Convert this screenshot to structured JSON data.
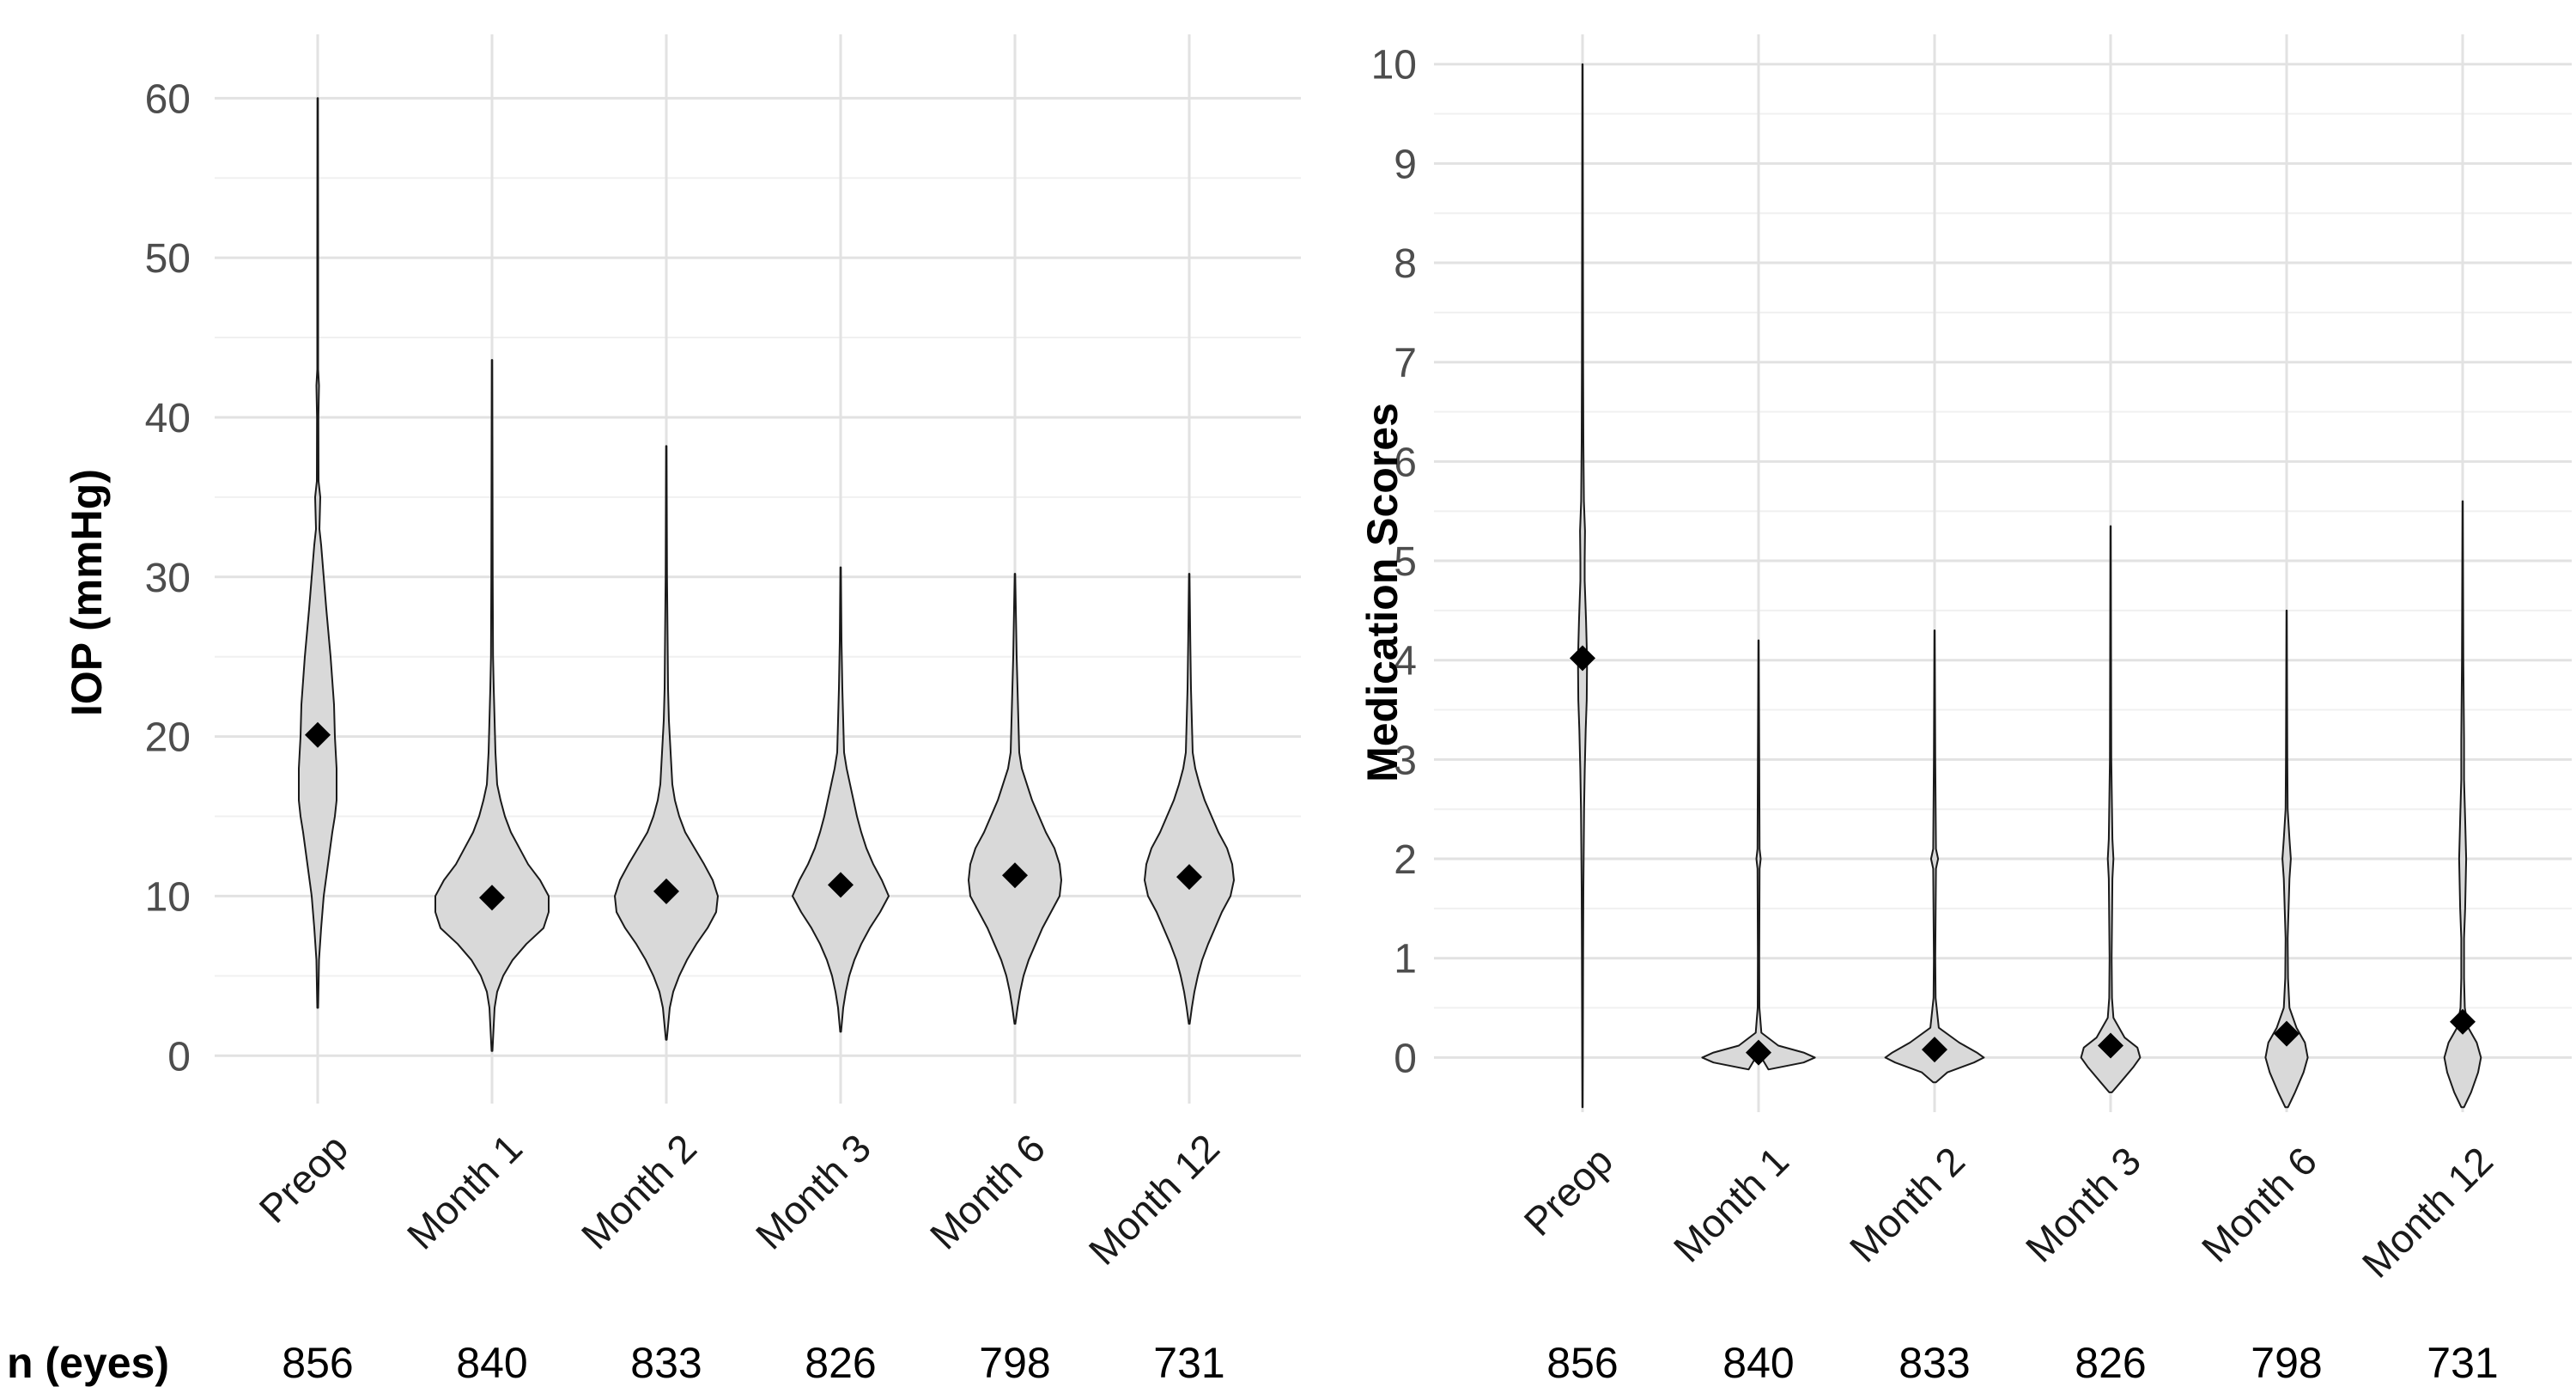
{
  "n_row": {
    "label": "n (eyes)",
    "left_values": [
      "856",
      "840",
      "833",
      "826",
      "798",
      "731"
    ],
    "right_values": [
      "856",
      "840",
      "833",
      "826",
      "798",
      "731"
    ]
  },
  "chart_data": [
    {
      "type": "violin",
      "title": "",
      "xlabel": "",
      "ylabel": "IOP (mmHg)",
      "categories": [
        "Preop",
        "Month 1",
        "Month 2",
        "Month 3",
        "Month 6",
        "Month 12"
      ],
      "ylim": [
        -3,
        64
      ],
      "yticks": [
        0,
        10,
        20,
        30,
        40,
        50,
        60
      ],
      "grid": true,
      "legend": "none",
      "means": [
        20.1,
        9.9,
        10.3,
        10.7,
        11.3,
        11.2
      ],
      "ranges": [
        [
          3,
          60
        ],
        [
          0.3,
          43.6
        ],
        [
          1,
          38.2
        ],
        [
          1.5,
          30.6
        ],
        [
          2,
          30.2
        ],
        [
          2,
          30.2
        ]
      ],
      "profiles": [
        [
          [
            3,
            0.5
          ],
          [
            6,
            1.5
          ],
          [
            8,
            4
          ],
          [
            10,
            7
          ],
          [
            12,
            12
          ],
          [
            14,
            17
          ],
          [
            15,
            20
          ],
          [
            16,
            22
          ],
          [
            18,
            22
          ],
          [
            20,
            20
          ],
          [
            22,
            19
          ],
          [
            25,
            15
          ],
          [
            28,
            10
          ],
          [
            30,
            7
          ],
          [
            32,
            4
          ],
          [
            33,
            2
          ],
          [
            35,
            3
          ],
          [
            36,
            1
          ],
          [
            40,
            0.8
          ],
          [
            42,
            1.5
          ],
          [
            43,
            0.5
          ],
          [
            50,
            0.5
          ],
          [
            60,
            0.3
          ]
        ],
        [
          [
            0.3,
            0.5
          ],
          [
            3,
            3
          ],
          [
            4,
            6
          ],
          [
            5,
            13
          ],
          [
            6,
            24
          ],
          [
            7,
            40
          ],
          [
            8,
            60
          ],
          [
            9,
            66
          ],
          [
            10,
            66
          ],
          [
            11,
            56
          ],
          [
            12,
            42
          ],
          [
            13,
            32
          ],
          [
            14,
            22
          ],
          [
            15,
            15
          ],
          [
            16,
            10
          ],
          [
            17,
            6
          ],
          [
            19,
            4
          ],
          [
            21,
            3
          ],
          [
            23,
            2
          ],
          [
            25,
            1.2
          ],
          [
            30,
            0.8
          ],
          [
            43.6,
            0.3
          ]
        ],
        [
          [
            1,
            0.5
          ],
          [
            3,
            4
          ],
          [
            4,
            8
          ],
          [
            5,
            15
          ],
          [
            6,
            24
          ],
          [
            7,
            35
          ],
          [
            8,
            48
          ],
          [
            9,
            58
          ],
          [
            10,
            60
          ],
          [
            11,
            54
          ],
          [
            12,
            44
          ],
          [
            13,
            33
          ],
          [
            14,
            22
          ],
          [
            15,
            15
          ],
          [
            16,
            10
          ],
          [
            17,
            7
          ],
          [
            19,
            5
          ],
          [
            21,
            3
          ],
          [
            23,
            2
          ],
          [
            26,
            1.5
          ],
          [
            30,
            0.8
          ],
          [
            38.2,
            0.3
          ]
        ],
        [
          [
            1.5,
            0.5
          ],
          [
            3,
            3
          ],
          [
            4,
            6
          ],
          [
            5,
            10
          ],
          [
            6,
            16
          ],
          [
            7,
            24
          ],
          [
            8,
            34
          ],
          [
            9,
            46
          ],
          [
            10,
            56
          ],
          [
            11,
            48
          ],
          [
            12,
            38
          ],
          [
            13,
            30
          ],
          [
            14,
            24
          ],
          [
            15,
            19
          ],
          [
            16,
            15
          ],
          [
            17,
            11
          ],
          [
            18,
            7
          ],
          [
            19,
            4
          ],
          [
            21,
            3
          ],
          [
            23,
            2
          ],
          [
            26,
            1
          ],
          [
            30.6,
            0.3
          ]
        ],
        [
          [
            2,
            0.5
          ],
          [
            3,
            3
          ],
          [
            4,
            6
          ],
          [
            5,
            10
          ],
          [
            6,
            16
          ],
          [
            7,
            24
          ],
          [
            8,
            32
          ],
          [
            9,
            42
          ],
          [
            10,
            52
          ],
          [
            11,
            54
          ],
          [
            12,
            52
          ],
          [
            13,
            46
          ],
          [
            14,
            36
          ],
          [
            15,
            28
          ],
          [
            16,
            20
          ],
          [
            17,
            14
          ],
          [
            18,
            8
          ],
          [
            19,
            5
          ],
          [
            21,
            4
          ],
          [
            23,
            3
          ],
          [
            25,
            2
          ],
          [
            30.2,
            0.3
          ]
        ],
        [
          [
            2,
            0.5
          ],
          [
            3,
            3
          ],
          [
            4,
            6
          ],
          [
            5,
            10
          ],
          [
            6,
            15
          ],
          [
            7,
            22
          ],
          [
            8,
            30
          ],
          [
            9,
            38
          ],
          [
            10,
            48
          ],
          [
            11,
            52
          ],
          [
            12,
            50
          ],
          [
            13,
            44
          ],
          [
            14,
            34
          ],
          [
            15,
            26
          ],
          [
            16,
            18
          ],
          [
            17,
            12
          ],
          [
            18,
            7
          ],
          [
            19,
            4
          ],
          [
            21,
            3
          ],
          [
            23,
            2
          ],
          [
            26,
            1.2
          ],
          [
            30.2,
            0.3
          ]
        ]
      ]
    },
    {
      "type": "violin",
      "title": "",
      "xlabel": "",
      "ylabel": "Medication Scores",
      "categories": [
        "Preop",
        "Month 1",
        "Month 2",
        "Month 3",
        "Month 6",
        "Month 12"
      ],
      "ylim": [
        -0.55,
        10.3
      ],
      "yticks": [
        0,
        1,
        2,
        3,
        4,
        5,
        6,
        7,
        8,
        9,
        10
      ],
      "grid": true,
      "legend": "none",
      "means": [
        4.02,
        0.05,
        0.08,
        0.12,
        0.24,
        0.36
      ],
      "ranges": [
        [
          -0.5,
          10
        ],
        [
          0,
          4.2
        ],
        [
          -0.25,
          4.3
        ],
        [
          -0.35,
          5.35
        ],
        [
          -0.5,
          4.5
        ],
        [
          -0.5,
          5.6
        ]
      ],
      "profiles": [
        [
          [
            -0.5,
            0.3
          ],
          [
            0,
            0.5
          ],
          [
            1,
            0.8
          ],
          [
            1.7,
            1.2
          ],
          [
            2,
            1.6
          ],
          [
            2.5,
            2.2
          ],
          [
            2.9,
            3.2
          ],
          [
            3.3,
            4.5
          ],
          [
            3.6,
            6
          ],
          [
            4,
            6.5
          ],
          [
            4.4,
            5
          ],
          [
            4.8,
            3
          ],
          [
            5,
            3
          ],
          [
            5.3,
            3.5
          ],
          [
            5.6,
            2
          ],
          [
            6.2,
            1.2
          ],
          [
            7,
            0.8
          ],
          [
            10,
            0.3
          ]
        ],
        [
          [
            0,
            4
          ],
          [
            -0.12,
            14
          ],
          [
            -0.05,
            64
          ],
          [
            0,
            80
          ],
          [
            0.05,
            64
          ],
          [
            0.12,
            28
          ],
          [
            0.25,
            4
          ],
          [
            0.5,
            1.2
          ],
          [
            1,
            1
          ],
          [
            1.9,
            1.5
          ],
          [
            2,
            3
          ],
          [
            2.1,
            1.5
          ],
          [
            3,
            1
          ],
          [
            4.2,
            0.3
          ]
        ],
        [
          [
            -0.25,
            2
          ],
          [
            -0.15,
            18
          ],
          [
            -0.05,
            56
          ],
          [
            0,
            70
          ],
          [
            0.05,
            60
          ],
          [
            0.15,
            35
          ],
          [
            0.3,
            6
          ],
          [
            0.6,
            1.5
          ],
          [
            1,
            1
          ],
          [
            1.9,
            2
          ],
          [
            2,
            5
          ],
          [
            2.1,
            2
          ],
          [
            3,
            1
          ],
          [
            4.3,
            0.3
          ]
        ],
        [
          [
            -0.35,
            2
          ],
          [
            -0.25,
            14
          ],
          [
            -0.1,
            32
          ],
          [
            0,
            42
          ],
          [
            0.1,
            38
          ],
          [
            0.2,
            20
          ],
          [
            0.4,
            4
          ],
          [
            0.6,
            2
          ],
          [
            1,
            1.5
          ],
          [
            1.8,
            2.5
          ],
          [
            2,
            4
          ],
          [
            2.2,
            2.5
          ],
          [
            3,
            1
          ],
          [
            5.35,
            0.3
          ]
        ],
        [
          [
            -0.5,
            2
          ],
          [
            -0.35,
            12
          ],
          [
            -0.15,
            24
          ],
          [
            0,
            30
          ],
          [
            0.15,
            26
          ],
          [
            0.3,
            14
          ],
          [
            0.5,
            4
          ],
          [
            0.8,
            2
          ],
          [
            1.2,
            1.5
          ],
          [
            1.8,
            4
          ],
          [
            2,
            6
          ],
          [
            2.2,
            4
          ],
          [
            2.5,
            1.5
          ],
          [
            3,
            1
          ],
          [
            4.5,
            0.3
          ]
        ],
        [
          [
            -0.5,
            2
          ],
          [
            -0.35,
            12
          ],
          [
            -0.15,
            22
          ],
          [
            0,
            26
          ],
          [
            0.15,
            20
          ],
          [
            0.3,
            8
          ],
          [
            0.5,
            3
          ],
          [
            0.8,
            2
          ],
          [
            1.2,
            2
          ],
          [
            1.5,
            3.5
          ],
          [
            2,
            5
          ],
          [
            2.4,
            3.5
          ],
          [
            2.8,
            2
          ],
          [
            3.2,
            2
          ],
          [
            4,
            1
          ],
          [
            5.6,
            0.3
          ]
        ]
      ]
    }
  ]
}
